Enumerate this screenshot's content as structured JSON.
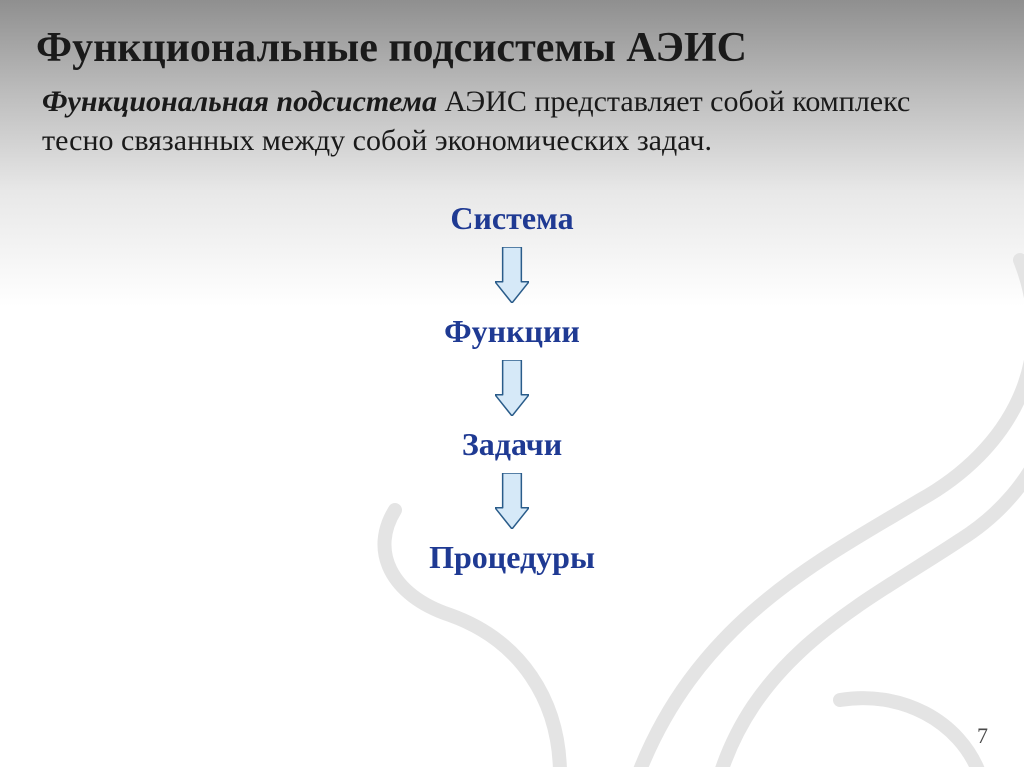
{
  "slide": {
    "title": "Функциональные подсистемы АЭИС",
    "title_fontsize": 42,
    "title_color": "#1a1a1a",
    "subtitle_lead": "Функциональная подсистема",
    "subtitle_rest": " АЭИС представляет собой комплекс тесно связанных между собой экономических задач.",
    "subtitle_fontsize": 30,
    "subtitle_color": "#1a1a1a",
    "page_number": "7",
    "page_number_fontsize": 22,
    "background_gradient": [
      "#8f8f8f",
      "#bcbcbc",
      "#e8e8e8",
      "#ffffff"
    ]
  },
  "diagram": {
    "type": "flowchart",
    "direction": "vertical",
    "node_color": "#1f3a93",
    "node_fontsize": 32,
    "node_fontweight": "bold",
    "arrow_fill": "#d6e9f8",
    "arrow_stroke": "#2a5c8a",
    "arrow_stroke_width": 1.5,
    "arrow_width": 34,
    "arrow_height": 56,
    "nodes": [
      {
        "id": "n1",
        "label": "Система"
      },
      {
        "id": "n2",
        "label": "Функции"
      },
      {
        "id": "n3",
        "label": "Задачи"
      },
      {
        "id": "n4",
        "label": "Процедуры"
      }
    ],
    "edges": [
      {
        "from": "n1",
        "to": "n2"
      },
      {
        "from": "n2",
        "to": "n3"
      },
      {
        "from": "n3",
        "to": "n4"
      }
    ]
  },
  "decor": {
    "swirl_stroke": "#e4e4e4",
    "swirl_stroke_width": 14
  }
}
